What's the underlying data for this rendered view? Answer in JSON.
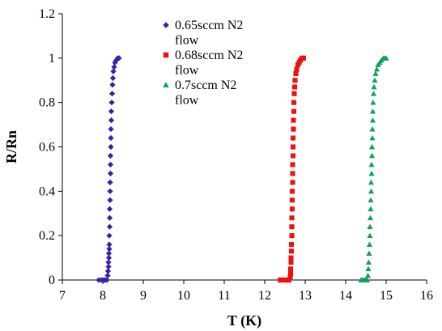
{
  "chart_data": {
    "type": "scatter",
    "title": "",
    "xlabel": "T (K)",
    "ylabel": "R/Rn",
    "xlim": [
      7,
      16
    ],
    "ylim": [
      0,
      1.2
    ],
    "x_ticks": [
      "7",
      "8",
      "9",
      "10",
      "11",
      "12",
      "13",
      "14",
      "15",
      "16"
    ],
    "y_ticks": [
      "0",
      "0.2",
      "0.4",
      "0.6",
      "0.8",
      "1",
      "1.2"
    ],
    "grid": false,
    "legend_position": "top-left",
    "series": [
      {
        "name": "0.65sccm N2 flow",
        "legend_lines": [
          "0.65sccm N2",
          "flow"
        ],
        "marker": "diamond",
        "color": "#3a1fa8",
        "points": [
          [
            7.9,
            0.0
          ],
          [
            7.97,
            0.0
          ],
          [
            8.02,
            0.0
          ],
          [
            8.05,
            0.0
          ],
          [
            8.1,
            0.0
          ],
          [
            8.12,
            0.02
          ],
          [
            8.13,
            0.04
          ],
          [
            8.14,
            0.06
          ],
          [
            8.14,
            0.08
          ],
          [
            8.15,
            0.1
          ],
          [
            8.15,
            0.12
          ],
          [
            8.16,
            0.14
          ],
          [
            8.16,
            0.16
          ],
          [
            8.16,
            0.2
          ],
          [
            8.17,
            0.24
          ],
          [
            8.17,
            0.28
          ],
          [
            8.17,
            0.32
          ],
          [
            8.18,
            0.36
          ],
          [
            8.18,
            0.4
          ],
          [
            8.18,
            0.44
          ],
          [
            8.19,
            0.48
          ],
          [
            8.19,
            0.52
          ],
          [
            8.19,
            0.56
          ],
          [
            8.2,
            0.6
          ],
          [
            8.2,
            0.64
          ],
          [
            8.2,
            0.68
          ],
          [
            8.21,
            0.72
          ],
          [
            8.21,
            0.76
          ],
          [
            8.22,
            0.8
          ],
          [
            8.23,
            0.84
          ],
          [
            8.24,
            0.88
          ],
          [
            8.25,
            0.91
          ],
          [
            8.26,
            0.94
          ],
          [
            8.28,
            0.96
          ],
          [
            8.3,
            0.98
          ],
          [
            8.33,
            0.99
          ],
          [
            8.37,
            1.0
          ],
          [
            8.4,
            1.0
          ]
        ]
      },
      {
        "name": "0.68sccm N2 flow",
        "legend_lines": [
          "0.68sccm N2",
          "flow"
        ],
        "marker": "square",
        "color": "#ee1111",
        "points": [
          [
            12.38,
            0.0
          ],
          [
            12.42,
            0.0
          ],
          [
            12.46,
            0.0
          ],
          [
            12.5,
            0.0
          ],
          [
            12.55,
            0.0
          ],
          [
            12.6,
            0.0
          ],
          [
            12.63,
            0.01
          ],
          [
            12.64,
            0.03
          ],
          [
            12.64,
            0.05
          ],
          [
            12.65,
            0.08
          ],
          [
            12.65,
            0.1
          ],
          [
            12.66,
            0.13
          ],
          [
            12.66,
            0.16
          ],
          [
            12.67,
            0.2
          ],
          [
            12.67,
            0.24
          ],
          [
            12.67,
            0.28
          ],
          [
            12.68,
            0.32
          ],
          [
            12.68,
            0.36
          ],
          [
            12.68,
            0.4
          ],
          [
            12.69,
            0.44
          ],
          [
            12.69,
            0.48
          ],
          [
            12.69,
            0.52
          ],
          [
            12.7,
            0.56
          ],
          [
            12.7,
            0.6
          ],
          [
            12.7,
            0.64
          ],
          [
            12.71,
            0.68
          ],
          [
            12.71,
            0.72
          ],
          [
            12.72,
            0.76
          ],
          [
            12.72,
            0.8
          ],
          [
            12.73,
            0.84
          ],
          [
            12.74,
            0.87
          ],
          [
            12.75,
            0.9
          ],
          [
            12.77,
            0.93
          ],
          [
            12.79,
            0.95
          ],
          [
            12.82,
            0.97
          ],
          [
            12.85,
            0.98
          ],
          [
            12.88,
            0.99
          ],
          [
            12.92,
            1.0
          ],
          [
            12.96,
            1.0
          ]
        ]
      },
      {
        "name": "0.7sccm N2 flow",
        "legend_lines": [
          "0.7sccm N2",
          "flow"
        ],
        "marker": "triangle",
        "color": "#13a05a",
        "points": [
          [
            14.38,
            0.0
          ],
          [
            14.42,
            0.0
          ],
          [
            14.46,
            0.0
          ],
          [
            14.5,
            0.0
          ],
          [
            14.53,
            0.0
          ],
          [
            14.55,
            0.02
          ],
          [
            14.56,
            0.05
          ],
          [
            14.57,
            0.08
          ],
          [
            14.58,
            0.12
          ],
          [
            14.59,
            0.16
          ],
          [
            14.6,
            0.2
          ],
          [
            14.6,
            0.24
          ],
          [
            14.61,
            0.28
          ],
          [
            14.62,
            0.32
          ],
          [
            14.62,
            0.36
          ],
          [
            14.63,
            0.4
          ],
          [
            14.63,
            0.44
          ],
          [
            14.64,
            0.48
          ],
          [
            14.64,
            0.52
          ],
          [
            14.65,
            0.56
          ],
          [
            14.65,
            0.6
          ],
          [
            14.66,
            0.64
          ],
          [
            14.66,
            0.68
          ],
          [
            14.67,
            0.72
          ],
          [
            14.67,
            0.76
          ],
          [
            14.68,
            0.8
          ],
          [
            14.69,
            0.84
          ],
          [
            14.7,
            0.87
          ],
          [
            14.72,
            0.9
          ],
          [
            14.74,
            0.93
          ],
          [
            14.77,
            0.95
          ],
          [
            14.8,
            0.97
          ],
          [
            14.84,
            0.98
          ],
          [
            14.88,
            0.99
          ],
          [
            14.93,
            1.0
          ],
          [
            14.97,
            1.0
          ],
          [
            15.0,
            1.0
          ]
        ]
      }
    ]
  }
}
